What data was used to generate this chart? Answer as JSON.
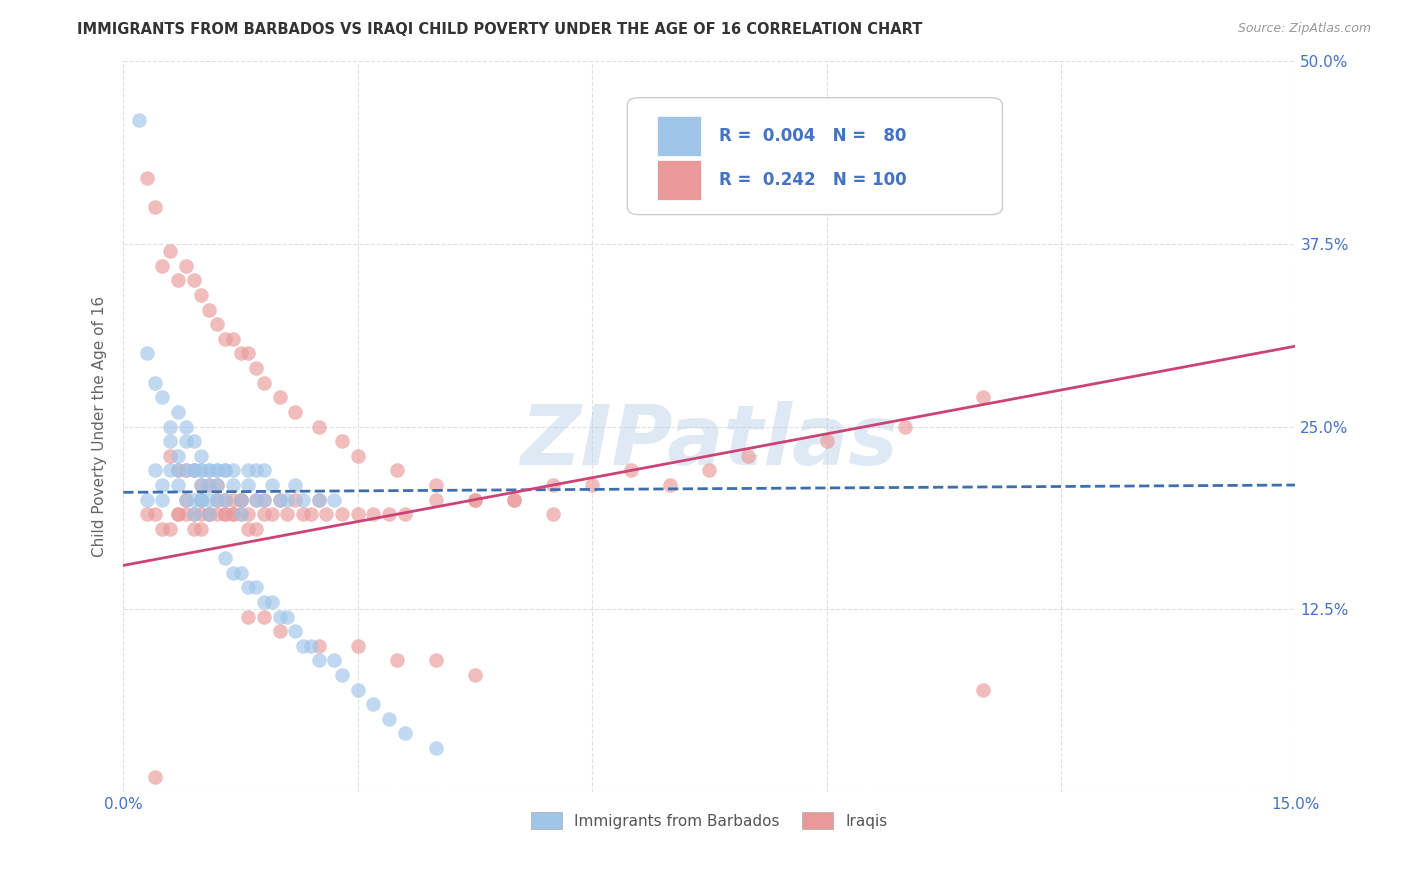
{
  "title": "IMMIGRANTS FROM BARBADOS VS IRAQI CHILD POVERTY UNDER THE AGE OF 16 CORRELATION CHART",
  "source": "Source: ZipAtlas.com",
  "ylabel": "Child Poverty Under the Age of 16",
  "xlim": [
    0.0,
    0.15
  ],
  "ylim": [
    0.0,
    0.5
  ],
  "xtick_vals": [
    0.0,
    0.03,
    0.06,
    0.09,
    0.12,
    0.15
  ],
  "ytick_vals": [
    0.0,
    0.125,
    0.25,
    0.375,
    0.5
  ],
  "xtick_labels": [
    "0.0%",
    "",
    "",
    "",
    "",
    "15.0%"
  ],
  "ytick_labels_right": [
    "",
    "12.5%",
    "25.0%",
    "37.5%",
    "50.0%"
  ],
  "legend_label1": "Immigrants from Barbados",
  "legend_label2": "Iraqis",
  "R1": "0.004",
  "N1": "80",
  "R2": "0.242",
  "N2": "100",
  "color_blue": "#9fc5e8",
  "color_pink": "#ea9999",
  "color_blue_line": "#3d6fad",
  "color_pink_line": "#cc4477",
  "color_blue_text": "#4472c4",
  "watermark": "ZIPatlas",
  "blue_x": [
    0.002,
    0.003,
    0.004,
    0.005,
    0.005,
    0.006,
    0.006,
    0.007,
    0.007,
    0.007,
    0.008,
    0.008,
    0.008,
    0.009,
    0.009,
    0.009,
    0.009,
    0.01,
    0.01,
    0.01,
    0.01,
    0.01,
    0.01,
    0.011,
    0.011,
    0.011,
    0.011,
    0.012,
    0.012,
    0.012,
    0.013,
    0.013,
    0.013,
    0.014,
    0.014,
    0.015,
    0.015,
    0.016,
    0.016,
    0.017,
    0.017,
    0.018,
    0.018,
    0.019,
    0.02,
    0.021,
    0.022,
    0.023,
    0.025,
    0.027,
    0.003,
    0.004,
    0.005,
    0.006,
    0.007,
    0.008,
    0.009,
    0.01,
    0.011,
    0.012,
    0.013,
    0.014,
    0.015,
    0.016,
    0.017,
    0.018,
    0.019,
    0.02,
    0.021,
    0.022,
    0.023,
    0.024,
    0.025,
    0.027,
    0.028,
    0.03,
    0.032,
    0.034,
    0.036,
    0.04
  ],
  "blue_y": [
    0.46,
    0.2,
    0.22,
    0.2,
    0.21,
    0.24,
    0.22,
    0.23,
    0.21,
    0.22,
    0.24,
    0.22,
    0.2,
    0.2,
    0.22,
    0.19,
    0.22,
    0.2,
    0.22,
    0.21,
    0.2,
    0.22,
    0.2,
    0.2,
    0.19,
    0.21,
    0.22,
    0.2,
    0.22,
    0.21,
    0.22,
    0.22,
    0.2,
    0.22,
    0.21,
    0.19,
    0.2,
    0.22,
    0.21,
    0.22,
    0.2,
    0.22,
    0.2,
    0.21,
    0.2,
    0.2,
    0.21,
    0.2,
    0.2,
    0.2,
    0.3,
    0.28,
    0.27,
    0.25,
    0.26,
    0.25,
    0.24,
    0.23,
    0.22,
    0.22,
    0.16,
    0.15,
    0.15,
    0.14,
    0.14,
    0.13,
    0.13,
    0.12,
    0.12,
    0.11,
    0.1,
    0.1,
    0.09,
    0.09,
    0.08,
    0.07,
    0.06,
    0.05,
    0.04,
    0.03
  ],
  "pink_x": [
    0.003,
    0.004,
    0.005,
    0.006,
    0.007,
    0.007,
    0.008,
    0.008,
    0.009,
    0.009,
    0.01,
    0.01,
    0.01,
    0.011,
    0.011,
    0.012,
    0.012,
    0.013,
    0.013,
    0.014,
    0.014,
    0.015,
    0.015,
    0.016,
    0.016,
    0.017,
    0.017,
    0.018,
    0.018,
    0.019,
    0.02,
    0.021,
    0.022,
    0.023,
    0.024,
    0.025,
    0.026,
    0.028,
    0.03,
    0.032,
    0.034,
    0.036,
    0.04,
    0.045,
    0.05,
    0.055,
    0.06,
    0.065,
    0.07,
    0.075,
    0.08,
    0.09,
    0.1,
    0.11,
    0.003,
    0.004,
    0.005,
    0.006,
    0.007,
    0.008,
    0.009,
    0.01,
    0.011,
    0.012,
    0.013,
    0.014,
    0.015,
    0.016,
    0.017,
    0.018,
    0.02,
    0.022,
    0.025,
    0.028,
    0.03,
    0.035,
    0.04,
    0.045,
    0.05,
    0.055,
    0.006,
    0.007,
    0.008,
    0.009,
    0.01,
    0.011,
    0.012,
    0.013,
    0.014,
    0.015,
    0.016,
    0.018,
    0.02,
    0.025,
    0.03,
    0.035,
    0.04,
    0.045,
    0.11,
    0.004
  ],
  "pink_y": [
    0.19,
    0.19,
    0.18,
    0.18,
    0.19,
    0.19,
    0.19,
    0.2,
    0.19,
    0.18,
    0.2,
    0.19,
    0.18,
    0.19,
    0.19,
    0.2,
    0.19,
    0.19,
    0.19,
    0.19,
    0.19,
    0.2,
    0.19,
    0.19,
    0.18,
    0.2,
    0.18,
    0.2,
    0.19,
    0.19,
    0.2,
    0.19,
    0.2,
    0.19,
    0.19,
    0.2,
    0.19,
    0.19,
    0.19,
    0.19,
    0.19,
    0.19,
    0.2,
    0.2,
    0.2,
    0.21,
    0.21,
    0.22,
    0.21,
    0.22,
    0.23,
    0.24,
    0.25,
    0.27,
    0.42,
    0.4,
    0.36,
    0.37,
    0.35,
    0.36,
    0.35,
    0.34,
    0.33,
    0.32,
    0.31,
    0.31,
    0.3,
    0.3,
    0.29,
    0.28,
    0.27,
    0.26,
    0.25,
    0.24,
    0.23,
    0.22,
    0.21,
    0.2,
    0.2,
    0.19,
    0.23,
    0.22,
    0.22,
    0.22,
    0.21,
    0.21,
    0.21,
    0.2,
    0.2,
    0.2,
    0.12,
    0.12,
    0.11,
    0.1,
    0.1,
    0.09,
    0.09,
    0.08,
    0.07,
    0.01
  ]
}
